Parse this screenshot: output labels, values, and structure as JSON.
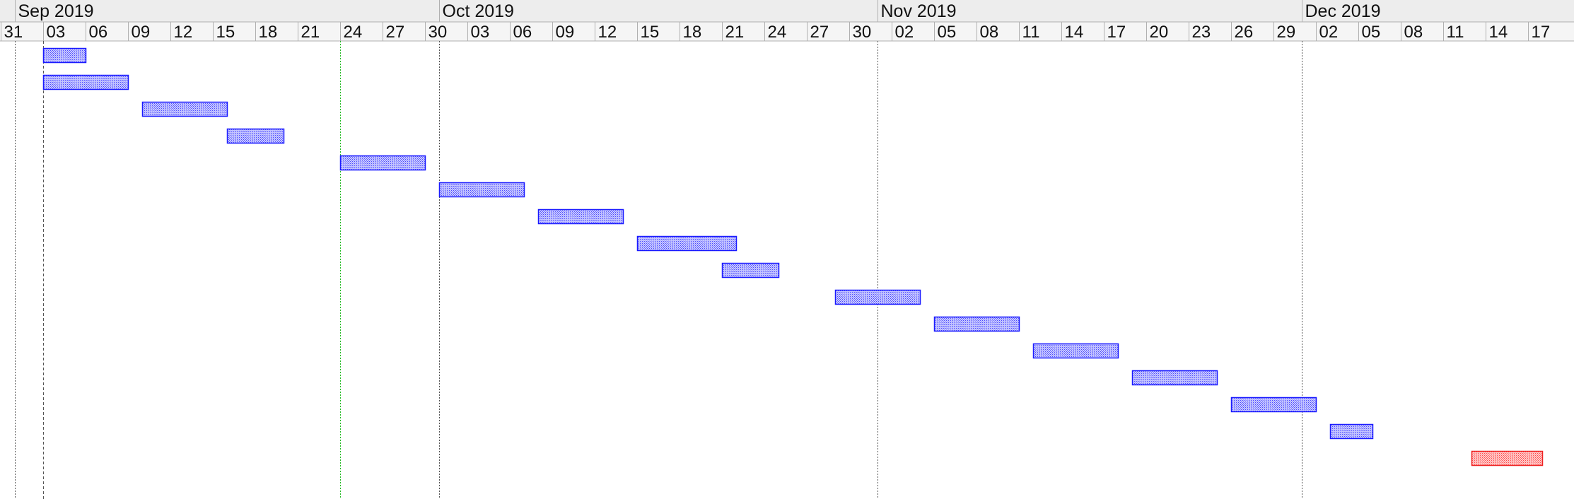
{
  "chart_data": {
    "type": "gantt",
    "x_axis": {
      "type": "date",
      "range": [
        "2019-08-31",
        "2019-12-19"
      ],
      "months": [
        {
          "label": "Sep 2019",
          "start": "2019-09-01"
        },
        {
          "label": "Oct 2019",
          "start": "2019-10-01"
        },
        {
          "label": "Nov 2019",
          "start": "2019-11-01"
        },
        {
          "label": "Dec 2019",
          "start": "2019-12-01"
        }
      ],
      "day_ticks": [
        {
          "date": "2019-08-31",
          "label": "31"
        },
        {
          "date": "2019-09-03",
          "label": "03"
        },
        {
          "date": "2019-09-06",
          "label": "06"
        },
        {
          "date": "2019-09-09",
          "label": "09"
        },
        {
          "date": "2019-09-12",
          "label": "12"
        },
        {
          "date": "2019-09-15",
          "label": "15"
        },
        {
          "date": "2019-09-18",
          "label": "18"
        },
        {
          "date": "2019-09-21",
          "label": "21"
        },
        {
          "date": "2019-09-24",
          "label": "24"
        },
        {
          "date": "2019-09-27",
          "label": "27"
        },
        {
          "date": "2019-09-30",
          "label": "30"
        },
        {
          "date": "2019-10-03",
          "label": "03"
        },
        {
          "date": "2019-10-06",
          "label": "06"
        },
        {
          "date": "2019-10-09",
          "label": "09"
        },
        {
          "date": "2019-10-12",
          "label": "12"
        },
        {
          "date": "2019-10-15",
          "label": "15"
        },
        {
          "date": "2019-10-18",
          "label": "18"
        },
        {
          "date": "2019-10-21",
          "label": "21"
        },
        {
          "date": "2019-10-24",
          "label": "24"
        },
        {
          "date": "2019-10-27",
          "label": "27"
        },
        {
          "date": "2019-10-30",
          "label": "30"
        },
        {
          "date": "2019-11-02",
          "label": "02"
        },
        {
          "date": "2019-11-05",
          "label": "05"
        },
        {
          "date": "2019-11-08",
          "label": "08"
        },
        {
          "date": "2019-11-11",
          "label": "11"
        },
        {
          "date": "2019-11-14",
          "label": "14"
        },
        {
          "date": "2019-11-17",
          "label": "17"
        },
        {
          "date": "2019-11-20",
          "label": "20"
        },
        {
          "date": "2019-11-23",
          "label": "23"
        },
        {
          "date": "2019-11-26",
          "label": "26"
        },
        {
          "date": "2019-11-29",
          "label": "29"
        },
        {
          "date": "2019-12-02",
          "label": "02"
        },
        {
          "date": "2019-12-05",
          "label": "05"
        },
        {
          "date": "2019-12-08",
          "label": "08"
        },
        {
          "date": "2019-12-11",
          "label": "11"
        },
        {
          "date": "2019-12-14",
          "label": "14"
        },
        {
          "date": "2019-12-17",
          "label": "17"
        }
      ]
    },
    "markers": [
      {
        "date": "2019-09-01",
        "style": "dotted",
        "color": "#555555"
      },
      {
        "date": "2019-09-03",
        "style": "dashed",
        "color": "#555555"
      },
      {
        "date": "2019-09-24",
        "style": "dotted",
        "color": "#22bb22"
      },
      {
        "date": "2019-10-01",
        "style": "dotted",
        "color": "#555555"
      },
      {
        "date": "2019-11-01",
        "style": "dotted",
        "color": "#555555"
      },
      {
        "date": "2019-12-01",
        "style": "dotted",
        "color": "#555555"
      }
    ],
    "tasks": [
      {
        "start": "2019-09-03",
        "end": "2019-09-06",
        "color": "#1a1aff"
      },
      {
        "start": "2019-09-03",
        "end": "2019-09-09",
        "color": "#1a1aff"
      },
      {
        "start": "2019-09-10",
        "end": "2019-09-16",
        "color": "#1a1aff"
      },
      {
        "start": "2019-09-16",
        "end": "2019-09-20",
        "color": "#1a1aff"
      },
      {
        "start": "2019-09-24",
        "end": "2019-09-30",
        "color": "#1a1aff"
      },
      {
        "start": "2019-10-01",
        "end": "2019-10-07",
        "color": "#1a1aff"
      },
      {
        "start": "2019-10-08",
        "end": "2019-10-14",
        "color": "#1a1aff"
      },
      {
        "start": "2019-10-15",
        "end": "2019-10-22",
        "color": "#1a1aff"
      },
      {
        "start": "2019-10-21",
        "end": "2019-10-25",
        "color": "#1a1aff"
      },
      {
        "start": "2019-10-29",
        "end": "2019-11-04",
        "color": "#1a1aff"
      },
      {
        "start": "2019-11-05",
        "end": "2019-11-11",
        "color": "#1a1aff"
      },
      {
        "start": "2019-11-12",
        "end": "2019-11-18",
        "color": "#1a1aff"
      },
      {
        "start": "2019-11-19",
        "end": "2019-11-25",
        "color": "#1a1aff"
      },
      {
        "start": "2019-11-26",
        "end": "2019-12-02",
        "color": "#1a1aff"
      },
      {
        "start": "2019-12-03",
        "end": "2019-12-06",
        "color": "#1a1aff"
      },
      {
        "start": "2019-12-13",
        "end": "2019-12-18",
        "color": "#ee2222"
      }
    ]
  }
}
